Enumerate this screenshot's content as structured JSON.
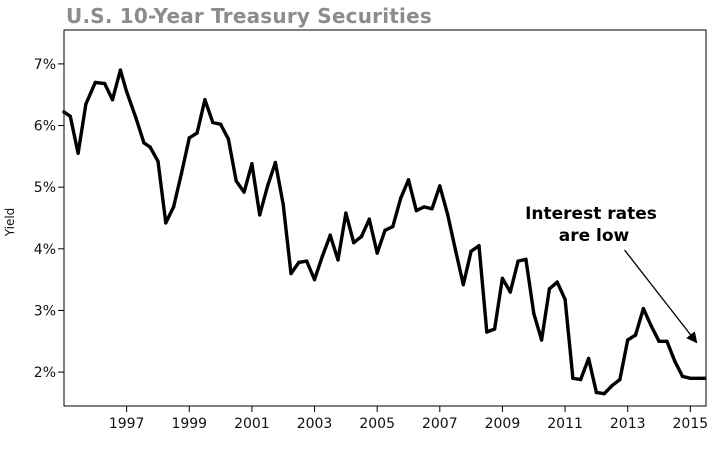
{
  "chart_data": {
    "type": "line",
    "title": "U.S. 10-Year Treasury Securities",
    "ylabel": "Yield",
    "xlabel": "",
    "xlim": [
      1995.0,
      2015.5
    ],
    "ylim": [
      1.45,
      7.55
    ],
    "x_ticks": [
      1997,
      1999,
      2001,
      2003,
      2005,
      2007,
      2009,
      2011,
      2013,
      2015
    ],
    "x_tick_labels": [
      "1997",
      "1999",
      "2001",
      "2003",
      "2005",
      "2007",
      "2009",
      "2011",
      "2013",
      "2015"
    ],
    "y_ticks": [
      2,
      3,
      4,
      5,
      6,
      7
    ],
    "y_tick_labels": [
      "2%",
      "3%",
      "4%",
      "5%",
      "6%",
      "7%"
    ],
    "grid": false,
    "line_color": "#000000",
    "annotation": {
      "lines": [
        "Interest rates",
        "are low"
      ],
      "arrow_from": [
        2012.9,
        3.98
      ],
      "arrow_to": [
        2015.2,
        2.48
      ]
    },
    "series": [
      {
        "x": [
          1995.0,
          1995.2,
          1995.45,
          1995.7,
          1996.0,
          1996.3,
          1996.55,
          1996.8,
          1997.0,
          1997.3,
          1997.55,
          1997.75,
          1998.0,
          1998.25,
          1998.5,
          1998.75,
          1999.0,
          1999.25,
          1999.5,
          1999.75,
          2000.0,
          2000.25,
          2000.5,
          2000.75,
          2001.0,
          2001.25,
          2001.5,
          2001.75,
          2002.0,
          2002.25,
          2002.5,
          2002.75,
          2003.0,
          2003.25,
          2003.5,
          2003.75,
          2004.0,
          2004.25,
          2004.5,
          2004.75,
          2005.0,
          2005.25,
          2005.5,
          2005.75,
          2006.0,
          2006.25,
          2006.5,
          2006.75,
          2007.0,
          2007.25,
          2007.5,
          2007.75,
          2008.0,
          2008.25,
          2008.5,
          2008.75,
          2009.0,
          2009.25,
          2009.5,
          2009.75,
          2010.0,
          2010.25,
          2010.5,
          2010.75,
          2011.0,
          2011.25,
          2011.5,
          2011.75,
          2012.0,
          2012.25,
          2012.5,
          2012.75,
          2013.0,
          2013.25,
          2013.5,
          2013.75,
          2014.0,
          2014.25,
          2014.5,
          2014.75,
          2015.0,
          2015.25,
          2015.45
        ],
        "values": [
          6.22,
          6.15,
          5.55,
          6.35,
          6.7,
          6.68,
          6.42,
          6.9,
          6.55,
          6.12,
          5.72,
          5.65,
          5.42,
          4.42,
          4.68,
          5.22,
          5.8,
          5.88,
          6.42,
          6.05,
          6.02,
          5.78,
          5.1,
          4.92,
          5.38,
          4.55,
          5.02,
          5.4,
          4.72,
          3.6,
          3.78,
          3.8,
          3.5,
          3.88,
          4.22,
          3.82,
          4.58,
          4.1,
          4.2,
          4.48,
          3.93,
          4.3,
          4.36,
          4.82,
          5.12,
          4.62,
          4.68,
          4.65,
          5.02,
          4.56,
          3.98,
          3.42,
          3.96,
          4.05,
          2.65,
          2.7,
          3.52,
          3.3,
          3.8,
          3.83,
          2.95,
          2.52,
          3.35,
          3.46,
          3.18,
          1.9,
          1.88,
          2.22,
          1.67,
          1.65,
          1.78,
          1.88,
          2.52,
          2.6,
          3.03,
          2.75,
          2.5,
          2.5,
          2.18,
          1.93,
          1.9,
          1.9,
          1.9
        ]
      }
    ]
  }
}
